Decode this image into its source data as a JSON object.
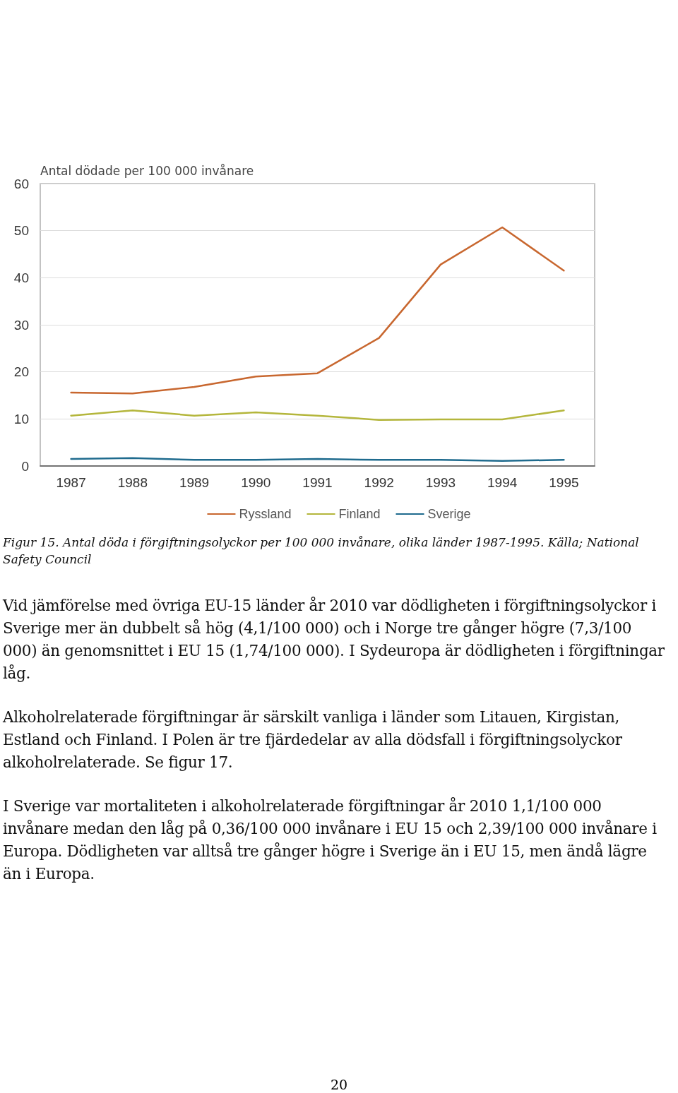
{
  "chart_data": {
    "type": "line",
    "ylabel": "Antal dödade per 100 000 invånare",
    "categories": [
      "1987",
      "1988",
      "1989",
      "1990",
      "1991",
      "1992",
      "1993",
      "1994",
      "1995"
    ],
    "series": [
      {
        "name": "Ryssland",
        "color": "#c8672f",
        "values": [
          15.6,
          15.4,
          16.8,
          19.0,
          19.7,
          27.2,
          42.8,
          50.7,
          41.5
        ]
      },
      {
        "name": "Finland",
        "color": "#b4b63c",
        "values": [
          10.7,
          11.8,
          10.7,
          11.4,
          10.7,
          9.8,
          9.9,
          9.9,
          11.8
        ]
      },
      {
        "name": "Sverige",
        "color": "#1f6b8e",
        "values": [
          1.5,
          1.7,
          1.3,
          1.3,
          1.5,
          1.3,
          1.3,
          1.1,
          1.3
        ]
      }
    ],
    "ylim": [
      0,
      60
    ],
    "yticks": [
      0,
      10,
      20,
      30,
      40,
      50,
      60
    ],
    "grid": "y",
    "legend": "bottom",
    "marker": "none",
    "annotations": [
      "Figur 15. Antal döda i förgiftningsolyckor per 100 000 invånare, olika länder 1987-1995. Källa; National Safety Council",
      "Vid jämförelse med övriga EU-15 länder år 2010 var dödligheten i förgiftningsolyckor i Sverige mer än dubbelt så hög (4,1/100 000) och i Norge tre gånger högre (7,3/100 000) än genomsnittet i EU 15 (1,74/100 000). I Sydeuropa är dödligheten i förgiftningar låg.",
      "Alkoholrelaterade förgiftningar är särskilt vanliga i länder som Litauen, Kirgistan, Estland och Finland. I Polen är tre fjärdedelar av alla dödsfall i förgiftningsolyckor alkoholrelaterade. Se figur 17.",
      "I Sverige var mortaliteten i alkoholrelaterade förgiftningar år 2010 1,1/100 000 invånare medan den låg på 0,36/100 000 invånare i EU 15 och 2,39/100 000 invånare i Europa. Dödligheten var alltså tre gånger högre i Sverige än i EU 15, men ändå lägre än i Europa.",
      "20"
    ]
  }
}
